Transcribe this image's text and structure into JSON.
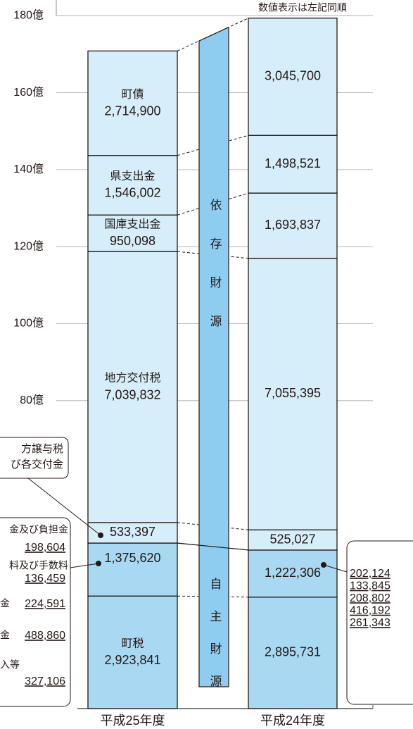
{
  "chart_data": {
    "type": "bar",
    "stacked": true,
    "categories": [
      "平成25年度",
      "平成24年度"
    ],
    "series": [
      {
        "name": "町税",
        "color": "#a9d8f2",
        "values": [
          29.23841,
          28.95731
        ],
        "value_labels": [
          "2,923,841",
          "2,895,731"
        ]
      },
      {
        "color": "#a9d8f2",
        "values": [
          13.7562,
          12.22306
        ],
        "value_labels": [
          "1,375,620",
          "1,222,306"
        ]
      },
      {
        "color": "#d6eefa",
        "values": [
          5.33397,
          5.25027
        ],
        "value_labels": [
          "533,397",
          "525,027"
        ]
      },
      {
        "name": "地方交付税",
        "color": "#d6eefa",
        "values": [
          70.39832,
          70.55395
        ],
        "value_labels": [
          "7,039,832",
          "7,055,395"
        ]
      },
      {
        "name": "国庫支出金",
        "color": "#d6eefa",
        "values": [
          9.50098,
          16.93837
        ],
        "value_labels": [
          "950,098",
          "1,693,837"
        ]
      },
      {
        "name": "県支出金",
        "color": "#d6eefa",
        "values": [
          15.46002,
          14.98521
        ],
        "value_labels": [
          "1,546,002",
          "1,498,521"
        ]
      },
      {
        "name": "町債",
        "color": "#d6eefa",
        "values": [
          27.149,
          30.457
        ],
        "value_labels": [
          "2,714,900",
          "3,045,700"
        ]
      }
    ],
    "ylim": [
      0,
      180
    ],
    "yticks": [
      {
        "value": 80,
        "label": "80億"
      },
      {
        "value": 100,
        "label": "100億"
      },
      {
        "value": 120,
        "label": "120億"
      },
      {
        "value": 140,
        "label": "140億"
      },
      {
        "value": 160,
        "label": "160億"
      },
      {
        "value": 180,
        "label": "180億"
      }
    ],
    "grid": true,
    "column_color": "#8ecdf0",
    "annotations": {
      "note": "数値表示は左記同順",
      "dependent": "依存財源",
      "independent": "自主財源",
      "transfer_callout": [
        "方譲与税",
        "び各交付金"
      ],
      "left_breakdown": [
        {
          "label": "金及び負担金",
          "amount": "198,604"
        },
        {
          "label": "料及び手数料",
          "amount": "136,459"
        },
        {
          "label": "金",
          "amount": "224,591"
        },
        {
          "label": "金",
          "amount": "488,860"
        },
        {
          "label": "入等",
          "amount": "327,106"
        }
      ],
      "right_breakdown": [
        "202,124",
        "133,845",
        "208,802",
        "416,192",
        "261,343"
      ]
    }
  }
}
